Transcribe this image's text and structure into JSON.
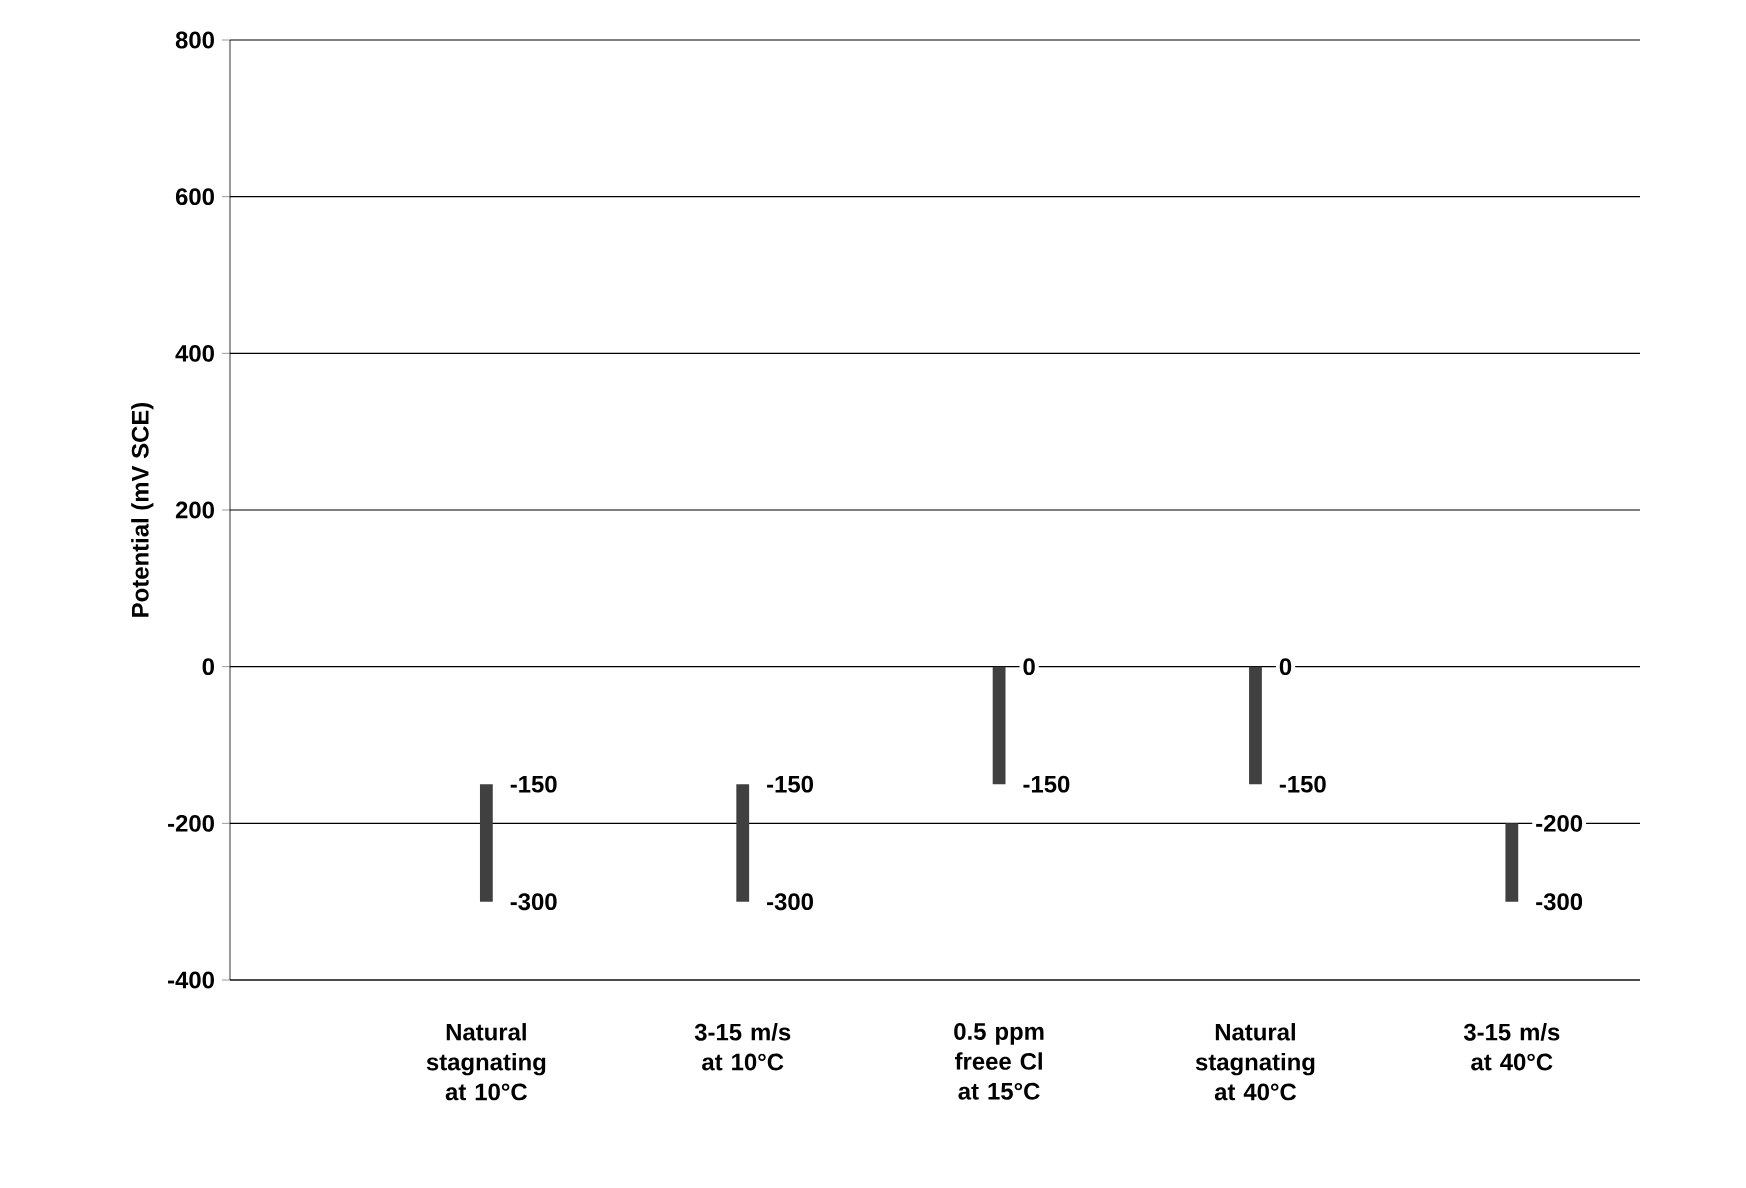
{
  "chart_data": {
    "type": "bar",
    "ylabel": "Potential (mV SCE)",
    "categories": [
      "Natural stagnating at 10°C",
      "3-15 m/s at 10°C",
      "0.5 ppm freee Cl at 15°C",
      "Natural stagnating at 40°C",
      "3-15 m/s at 40°C"
    ],
    "base": [
      -300,
      -300,
      -150,
      -150,
      -300
    ],
    "values": [
      150,
      150,
      150,
      150,
      100
    ],
    "color": "#404040",
    "ylim": [
      -400,
      800
    ],
    "yticks": [
      -400,
      -200,
      0,
      200,
      400,
      600,
      800
    ],
    "grid": "y",
    "annotations": [
      {
        "text": "-150",
        "x": "Natural stagnating at 10°C",
        "y": -150
      },
      {
        "text": "-300",
        "x": "Natural stagnating at 10°C",
        "y": -300
      },
      {
        "text": "-150",
        "x": "3-15 m/s at 10°C",
        "y": -150
      },
      {
        "text": "-300",
        "x": "3-15 m/s at 10°C",
        "y": -300
      },
      {
        "text": "0",
        "x": "0.5 ppm freee Cl at 15°C",
        "y": 0
      },
      {
        "text": "-150",
        "x": "0.5 ppm freee Cl at 15°C",
        "y": -150
      },
      {
        "text": "0",
        "x": "Natural stagnating at 40°C",
        "y": 0
      },
      {
        "text": "-150",
        "x": "Natural stagnating at 40°C",
        "y": -150
      },
      {
        "text": "-200",
        "x": "3-15 m/s at 40°C",
        "y": -200
      },
      {
        "text": "-300",
        "x": "3-15 m/s at 40°C",
        "y": -300
      }
    ]
  }
}
